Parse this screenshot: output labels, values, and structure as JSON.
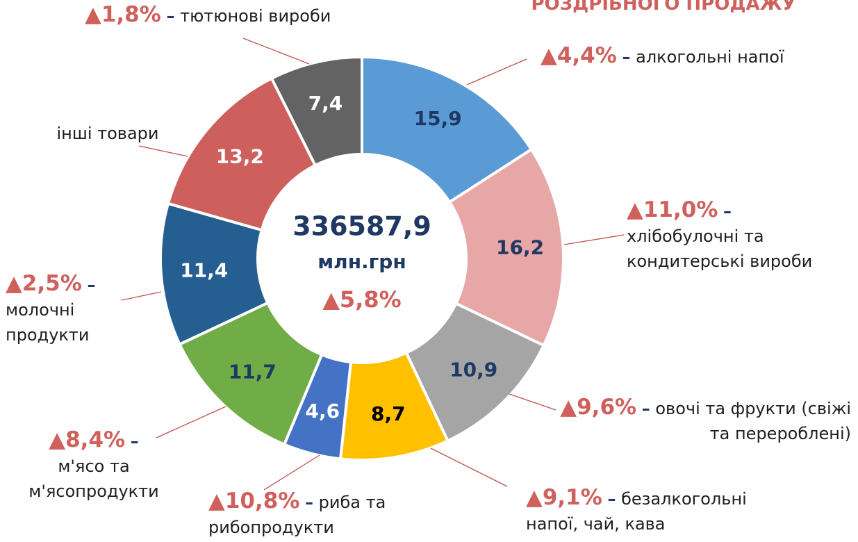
{
  "chart_data": {
    "type": "pie",
    "donut": true,
    "title": "РОЗДРІБНОГО ПРОДАЖУ",
    "annotations": [
      "336587,9",
      "млн.грн",
      "▲5,8%"
    ],
    "separator": "–",
    "categories": [
      "алкогольні напої",
      "хлібобулочні та кондитерські вироби",
      "овочі та фрукти (свіжі та перероблені)",
      "безалкогольні напої, чай, кава",
      "риба та рибопродукти",
      "м'ясо та м'ясопродукти",
      "молочні продукти",
      "інші товари",
      "тютюнові вироби"
    ],
    "changes": [
      "▲4,4%",
      "▲11,0%",
      "▲9,6%",
      "▲9,1%",
      "▲10,8%",
      "▲8,4%",
      "▲2,5%",
      null,
      "▲1,8%"
    ],
    "values": [
      15.9,
      16.2,
      10.9,
      8.7,
      4.6,
      11.7,
      11.4,
      13.2,
      7.4
    ],
    "value_labels": [
      "15,9",
      "16,2",
      "10,9",
      "8,7",
      "4,6",
      "11,7",
      "11,4",
      "13,2",
      "7,4"
    ],
    "colors": [
      "#5b9bd5",
      "#e6a7a6",
      "#a5a5a5",
      "#ffc000",
      "#4472c4",
      "#70ad47",
      "#255e91",
      "#cd5f5c",
      "#636363"
    ],
    "value_label_colors": [
      "#1f3864",
      "#1f3864",
      "#1f3864",
      "#000000",
      "#ffffff",
      "#1f3864",
      "#ffffff",
      "#ffffff",
      "#ffffff"
    ]
  }
}
